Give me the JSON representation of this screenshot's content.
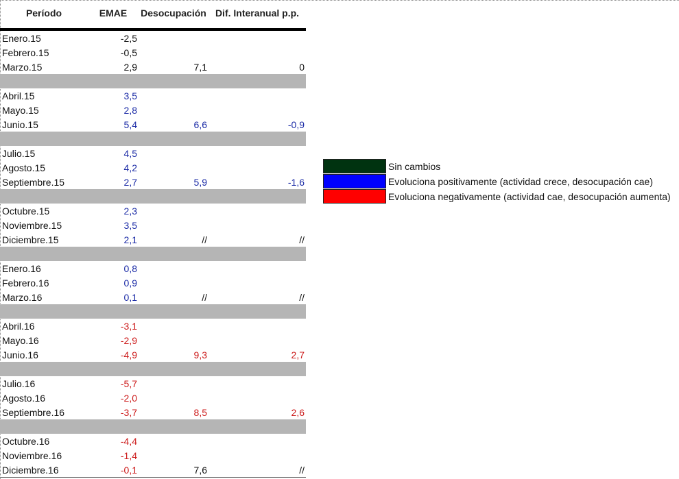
{
  "table": {
    "headers": [
      "Período",
      "EMAE",
      "Desocupación",
      "Dif. Interanual p.p."
    ],
    "groups": [
      {
        "rows": [
          {
            "periodo": "Enero.15",
            "emae": "-2,5",
            "desoc": "",
            "dif": "",
            "color": "black"
          },
          {
            "periodo": "Febrero.15",
            "emae": "-0,5",
            "desoc": "",
            "dif": "",
            "color": "black"
          },
          {
            "periodo": "Marzo.15",
            "emae": "2,9",
            "desoc": "7,1",
            "dif": "0",
            "color": "black"
          }
        ]
      },
      {
        "rows": [
          {
            "periodo": "Abril.15",
            "emae": "3,5",
            "desoc": "",
            "dif": "",
            "color": "blue"
          },
          {
            "periodo": "Mayo.15",
            "emae": "2,8",
            "desoc": "",
            "dif": "",
            "color": "blue"
          },
          {
            "periodo": "Junio.15",
            "emae": "5,4",
            "desoc": "6,6",
            "dif": "-0,9",
            "color": "blue"
          }
        ]
      },
      {
        "rows": [
          {
            "periodo": "Julio.15",
            "emae": "4,5",
            "desoc": "",
            "dif": "",
            "color": "blue"
          },
          {
            "periodo": "Agosto.15",
            "emae": "4,2",
            "desoc": "",
            "dif": "",
            "color": "blue"
          },
          {
            "periodo": "Septiembre.15",
            "emae": "2,7",
            "desoc": "5,9",
            "dif": "-1,6",
            "color": "blue"
          }
        ]
      },
      {
        "rows": [
          {
            "periodo": "Octubre.15",
            "emae": "2,3",
            "desoc": "",
            "dif": "",
            "color": "blue"
          },
          {
            "periodo": "Noviembre.15",
            "emae": "3,5",
            "desoc": "",
            "dif": "",
            "color": "blue"
          },
          {
            "periodo": "Diciembre.15",
            "emae": "2,1",
            "desoc": "//",
            "dif": "//",
            "color": "blue",
            "slash_color": "black"
          }
        ]
      },
      {
        "rows": [
          {
            "periodo": "Enero.16",
            "emae": "0,8",
            "desoc": "",
            "dif": "",
            "color": "blue"
          },
          {
            "periodo": "Febrero.16",
            "emae": "0,9",
            "desoc": "",
            "dif": "",
            "color": "blue"
          },
          {
            "periodo": "Marzo.16",
            "emae": "0,1",
            "desoc": "//",
            "dif": "//",
            "color": "blue",
            "slash_color": "black"
          }
        ]
      },
      {
        "rows": [
          {
            "periodo": "Abril.16",
            "emae": "-3,1",
            "desoc": "",
            "dif": "",
            "color": "red"
          },
          {
            "periodo": "Mayo.16",
            "emae": "-2,9",
            "desoc": "",
            "dif": "",
            "color": "red"
          },
          {
            "periodo": "Junio.16",
            "emae": "-4,9",
            "desoc": "9,3",
            "dif": "2,7",
            "color": "red"
          }
        ]
      },
      {
        "rows": [
          {
            "periodo": "Julio.16",
            "emae": "-5,7",
            "desoc": "",
            "dif": "",
            "color": "red"
          },
          {
            "periodo": "Agosto.16",
            "emae": "-2,0",
            "desoc": "",
            "dif": "",
            "color": "red"
          },
          {
            "periodo": "Septiembre.16",
            "emae": "-3,7",
            "desoc": "8,5",
            "dif": "2,6",
            "color": "red"
          }
        ]
      },
      {
        "rows": [
          {
            "periodo": "Octubre.16",
            "emae": "-4,4",
            "desoc": "",
            "dif": "",
            "color": "red"
          },
          {
            "periodo": "Noviembre.16",
            "emae": "-1,4",
            "desoc": "",
            "dif": "",
            "color": "red"
          },
          {
            "periodo": "Diciembre.16",
            "emae": "-0,1",
            "desoc": "7,6",
            "dif": "//",
            "color": "red",
            "desoc_color": "black",
            "slash_color": "black"
          }
        ]
      }
    ]
  },
  "legend": [
    {
      "label": "Sin cambios",
      "color": "#003310"
    },
    {
      "label": "Evoluciona positivamente (actividad crece, desocupación cae)",
      "color": "#0000ff"
    },
    {
      "label": "Evoluciona negativamente (actividad cae, desocupación aumenta)",
      "color": "#ff0000"
    }
  ]
}
